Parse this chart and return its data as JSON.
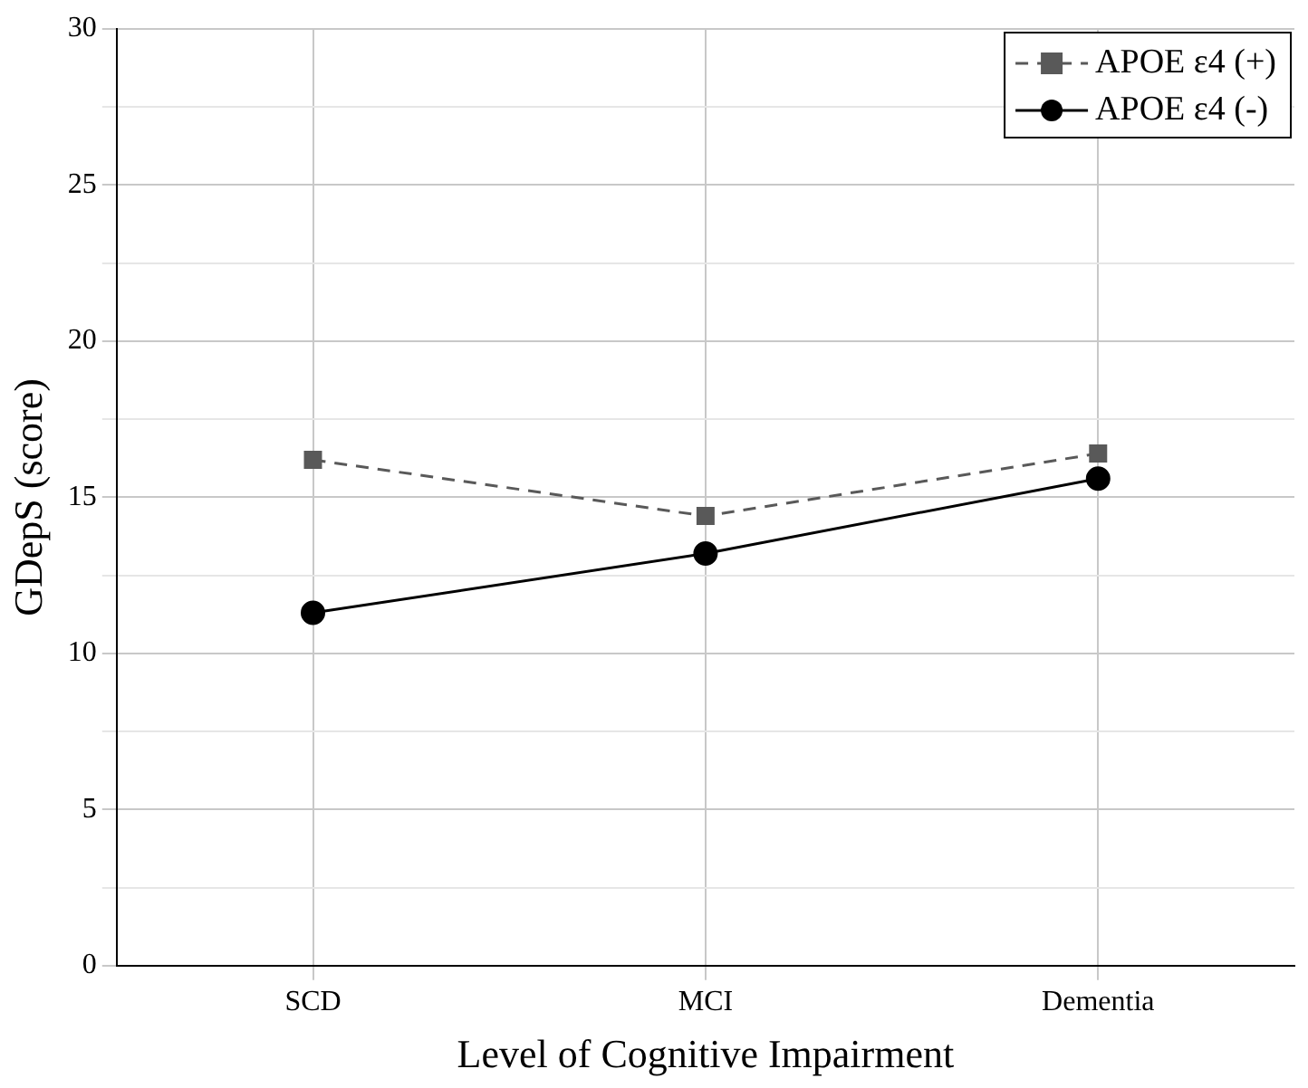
{
  "chart_data": {
    "type": "line",
    "xlabel": "Level of Cognitive Impairment",
    "ylabel": "GDepS (score)",
    "categories": [
      "SCD",
      "MCI",
      "Dementia"
    ],
    "series": [
      {
        "name": "APOE ε4 (+)",
        "color": "#595959",
        "values": [
          16.2,
          14.4,
          16.4
        ],
        "marker": "square",
        "line_style": "dashed"
      },
      {
        "name": "APOE ε4 (-)",
        "color": "#000000",
        "values": [
          11.3,
          13.2,
          15.6
        ],
        "marker": "circle",
        "line_style": "solid"
      }
    ],
    "ylim": [
      0,
      30
    ],
    "yticks": [
      0,
      {
        "value": 2.5,
        "label": null
      },
      5,
      {
        "value": 7.5,
        "label": null
      },
      10,
      {
        "value": 12.5,
        "label": null
      },
      15,
      {
        "value": 17.5,
        "label": null
      },
      20,
      {
        "value": 22.5,
        "label": null
      },
      25,
      {
        "value": 27.5,
        "label": null
      },
      30
    ],
    "grid": true,
    "legend": "top right"
  }
}
